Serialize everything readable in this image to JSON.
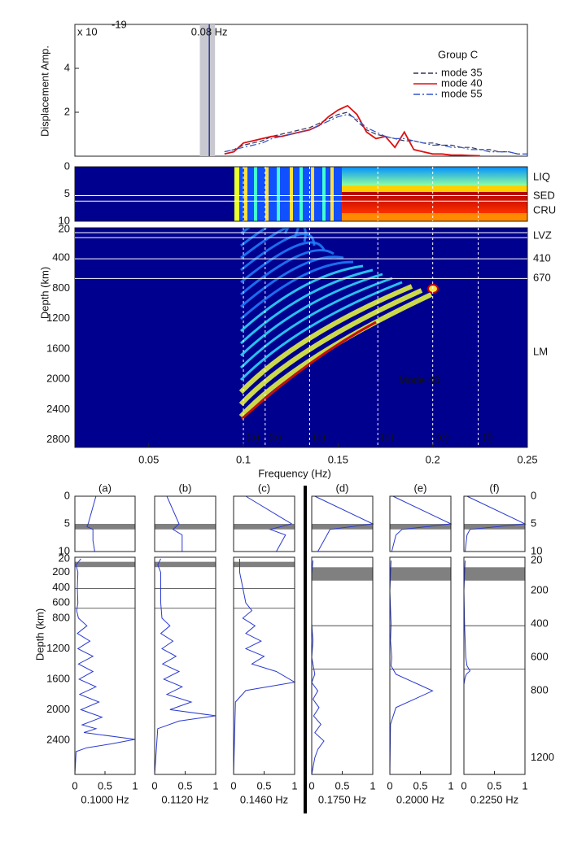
{
  "chart_data": [
    {
      "type": "line",
      "ylabel": "Displacement Amp.",
      "exponent_base": "x 10",
      "exponent": "-19",
      "annotation": "0.08 Hz",
      "marker_x": 0.082,
      "band": [
        0.077,
        0.085
      ],
      "legend_title": "Group C",
      "xlim": [
        0.011,
        0.25
      ],
      "ylim": [
        0,
        6
      ],
      "yticks": [
        2,
        4
      ],
      "x": [
        0.09,
        0.095,
        0.1,
        0.105,
        0.11,
        0.115,
        0.12,
        0.125,
        0.13,
        0.135,
        0.14,
        0.145,
        0.15,
        0.155,
        0.16,
        0.165,
        0.17,
        0.175,
        0.18,
        0.185,
        0.19,
        0.195,
        0.2,
        0.205,
        0.21,
        0.215,
        0.22,
        0.225,
        0.23,
        0.235,
        0.24,
        0.245,
        0.25
      ],
      "series": [
        {
          "name": "mode 35",
          "color": "#333355",
          "dash": "dashed",
          "values": [
            0.2,
            0.3,
            0.5,
            0.6,
            0.7,
            0.9,
            1.0,
            1.1,
            1.2,
            1.3,
            1.5,
            1.7,
            1.9,
            2.0,
            1.6,
            1.2,
            1.0,
            0.9,
            0.8,
            0.7,
            0.7,
            0.6,
            0.6,
            0.5,
            0.5,
            0.4,
            0.4,
            0.3,
            0.3,
            0.2,
            0.2,
            0.1,
            0.1
          ]
        },
        {
          "name": "mode 40",
          "color": "#dd1111",
          "dash": "solid",
          "values": [
            0.1,
            0.2,
            0.6,
            0.7,
            0.8,
            0.9,
            0.9,
            1.0,
            1.1,
            1.2,
            1.4,
            1.8,
            2.1,
            2.3,
            1.9,
            1.1,
            0.8,
            0.9,
            0.4,
            1.1,
            0.3,
            0.2,
            0.1,
            0.1,
            0.05,
            0.05,
            0.03,
            0.02,
            null,
            null,
            null,
            null,
            null
          ]
        },
        {
          "name": "mode 55",
          "color": "#3355cc",
          "dash": "dashdot",
          "values": [
            0.2,
            0.3,
            0.4,
            0.5,
            0.6,
            0.8,
            0.9,
            1.0,
            1.1,
            1.2,
            1.4,
            1.6,
            1.8,
            1.9,
            1.7,
            1.3,
            1.1,
            0.9,
            0.8,
            0.8,
            0.7,
            0.6,
            0.5,
            0.5,
            0.4,
            0.4,
            0.3,
            0.3,
            0.2,
            0.2,
            0.2,
            0.1,
            0.1
          ]
        }
      ]
    },
    {
      "type": "heatmap",
      "ylabel": "Depth (km)",
      "xlabel": "Frequency (Hz)",
      "annotation": "Mode 40",
      "xlim": [
        0.011,
        0.25
      ],
      "xticks": [
        0.05,
        0.1,
        0.15,
        0.2,
        0.25
      ],
      "crust_ylim": [
        0,
        10
      ],
      "crust_yticks": [
        0,
        5,
        10
      ],
      "crust_lines": [
        5.3,
        6.3
      ],
      "mantle_ylim": [
        0,
        2900
      ],
      "mantle_yticks": [
        20,
        400,
        800,
        1200,
        1600,
        2000,
        2400,
        2800
      ],
      "mantle_lines": [
        65,
        130,
        410,
        670
      ],
      "layer_labels": [
        "LIQ",
        "SED",
        "CRU",
        "LVZ",
        "410",
        "670",
        "LM"
      ],
      "markers": [
        {
          "label": "(a)",
          "x": 0.1
        },
        {
          "label": "(b)",
          "x": 0.1115
        },
        {
          "label": "(c)",
          "x": 0.135
        },
        {
          "label": "(d)",
          "x": 0.171
        },
        {
          "label": "(e)",
          "x": 0.2
        },
        {
          "label": "(f)",
          "x": 0.224
        }
      ]
    },
    {
      "type": "profile",
      "title": "(a)",
      "freq_label": "0.1000 Hz",
      "ylabel": "Depth (km)",
      "xlim": [
        0,
        1
      ],
      "xticks": [
        0,
        0.5,
        1
      ],
      "upper_ylim": [
        0,
        10
      ],
      "upper_yticks": [
        0,
        5,
        10
      ],
      "lower_ylim": [
        0,
        2850
      ],
      "lower_yticks": [
        20,
        200,
        400,
        600,
        800,
        1200,
        1600,
        2000,
        2400
      ],
      "sed": [
        5,
        6
      ],
      "lvz": [
        60,
        130
      ],
      "boundaries": [
        410,
        670
      ],
      "upper_depth": [
        0,
        5,
        5.5,
        6,
        8,
        10
      ],
      "upper_amp": [
        0.35,
        0.22,
        0.2,
        0.3,
        0.3,
        0.33
      ],
      "lower_depth": [
        20,
        100,
        200,
        400,
        600,
        700,
        800,
        900,
        1000,
        1100,
        1200,
        1300,
        1400,
        1500,
        1600,
        1700,
        1800,
        1900,
        2000,
        2100,
        2200,
        2250,
        2300,
        2390,
        2450,
        2500,
        2550,
        2850
      ],
      "lower_amp": [
        0.1,
        0.02,
        0.05,
        0.04,
        0.05,
        0.03,
        0.06,
        0.2,
        0.04,
        0.25,
        0.05,
        0.3,
        0.06,
        0.3,
        0.07,
        0.35,
        0.08,
        0.4,
        0.1,
        0.45,
        0.12,
        0.35,
        0.15,
        1.0,
        0.6,
        0.2,
        0.02,
        0.0
      ]
    },
    {
      "type": "profile",
      "title": "(b)",
      "freq_label": "0.1120 Hz",
      "xlim": [
        0,
        1
      ],
      "xticks": [
        0,
        0.5,
        1
      ],
      "upper_ylim": [
        0,
        10
      ],
      "lower_ylim": [
        0,
        2850
      ],
      "sed": [
        5,
        6
      ],
      "lvz": [
        60,
        130
      ],
      "boundaries": [
        410,
        670
      ],
      "upper_depth": [
        0,
        5,
        6,
        7,
        10
      ],
      "upper_amp": [
        0.2,
        0.4,
        0.3,
        0.45,
        0.45
      ],
      "lower_depth": [
        20,
        100,
        200,
        400,
        600,
        800,
        900,
        1000,
        1100,
        1200,
        1300,
        1400,
        1500,
        1600,
        1700,
        1800,
        1900,
        2000,
        2080,
        2150,
        2250,
        2850
      ],
      "lower_amp": [
        0.1,
        0.05,
        0.1,
        0.1,
        0.1,
        0.12,
        0.25,
        0.1,
        0.3,
        0.12,
        0.35,
        0.13,
        0.4,
        0.15,
        0.45,
        0.2,
        0.6,
        0.25,
        1.0,
        0.4,
        0.05,
        0.0
      ]
    },
    {
      "type": "profile",
      "title": "(c)",
      "freq_label": "0.1460 Hz",
      "xlim": [
        0,
        1
      ],
      "xticks": [
        0,
        0.5,
        1
      ],
      "upper_ylim": [
        0,
        10
      ],
      "lower_ylim": [
        0,
        2850
      ],
      "sed": [
        5,
        6
      ],
      "lvz": [
        60,
        130
      ],
      "boundaries": [
        410,
        670
      ],
      "upper_depth": [
        0,
        5,
        6,
        7,
        10
      ],
      "upper_amp": [
        0.2,
        0.95,
        0.6,
        0.85,
        0.7
      ],
      "lower_depth": [
        20,
        100,
        200,
        400,
        600,
        700,
        800,
        900,
        1000,
        1100,
        1200,
        1300,
        1400,
        1500,
        1640,
        1750,
        1900,
        2850
      ],
      "lower_amp": [
        0.1,
        0.1,
        0.1,
        0.15,
        0.2,
        0.3,
        0.15,
        0.35,
        0.2,
        0.45,
        0.2,
        0.5,
        0.3,
        0.7,
        1.0,
        0.2,
        0.03,
        0.0
      ]
    },
    {
      "type": "profile",
      "title": "(d)",
      "freq_label": "0.1750 Hz",
      "xlim": [
        0,
        1
      ],
      "xticks": [
        0,
        0.5,
        1
      ],
      "upper_ylim": [
        0,
        10
      ],
      "lower_ylim": [
        0,
        1300
      ],
      "sed": [
        5,
        6
      ],
      "lvz": [
        60,
        140
      ],
      "boundaries": [
        410,
        670
      ],
      "upper_depth": [
        0,
        5,
        6,
        7,
        10
      ],
      "upper_amp": [
        0.05,
        1.0,
        0.3,
        0.25,
        0.1
      ],
      "lower_depth": [
        20,
        100,
        200,
        400,
        500,
        600,
        700,
        750,
        800,
        850,
        900,
        950,
        1000,
        1050,
        1100,
        1150,
        1200,
        1300
      ],
      "lower_amp": [
        0.02,
        0.0,
        0.0,
        0.0,
        0.02,
        0.0,
        0.05,
        0.0,
        0.1,
        0.02,
        0.12,
        0.03,
        0.15,
        0.05,
        0.2,
        0.1,
        0.05,
        0.0
      ]
    },
    {
      "type": "profile",
      "title": "(e)",
      "freq_label": "0.2000 Hz",
      "xlim": [
        0,
        1
      ],
      "xticks": [
        0,
        0.5,
        1
      ],
      "upper_ylim": [
        0,
        10
      ],
      "lower_ylim": [
        0,
        1300
      ],
      "sed": [
        5,
        6
      ],
      "lvz": [
        60,
        140
      ],
      "boundaries": [
        410,
        670
      ],
      "upper_depth": [
        0,
        5,
        6,
        7,
        10
      ],
      "upper_amp": [
        0.05,
        1.0,
        0.2,
        0.1,
        0.03
      ],
      "lower_depth": [
        20,
        200,
        400,
        500,
        600,
        650,
        700,
        750,
        800,
        850,
        900,
        1000,
        1300
      ],
      "lower_amp": [
        0.02,
        0.0,
        0.02,
        0.01,
        0.03,
        0.02,
        0.1,
        0.4,
        0.7,
        0.4,
        0.1,
        0.01,
        0.0
      ]
    },
    {
      "type": "profile",
      "title": "(f)",
      "freq_label": "0.2250 Hz",
      "xlim": [
        0,
        1
      ],
      "xticks": [
        0,
        0.5,
        1
      ],
      "upper_ylim": [
        0,
        10
      ],
      "upper_yticks": [
        0,
        5,
        10
      ],
      "lower_ylim": [
        0,
        1300
      ],
      "lower_yticks": [
        20,
        200,
        400,
        600,
        800,
        1200
      ],
      "sed": [
        5,
        6
      ],
      "lvz": [
        60,
        140
      ],
      "boundaries": [
        410,
        670
      ],
      "upper_depth": [
        0,
        5,
        6,
        7,
        10
      ],
      "upper_amp": [
        0.05,
        1.0,
        0.1,
        0.05,
        0.02
      ],
      "lower_depth": [
        20,
        200,
        400,
        500,
        600,
        650,
        680,
        700,
        720,
        760,
        800,
        1300
      ],
      "lower_amp": [
        0.02,
        0.0,
        0.01,
        0.02,
        0.03,
        0.05,
        0.1,
        0.04,
        0.02,
        0.0,
        0.0,
        0.0
      ]
    }
  ]
}
